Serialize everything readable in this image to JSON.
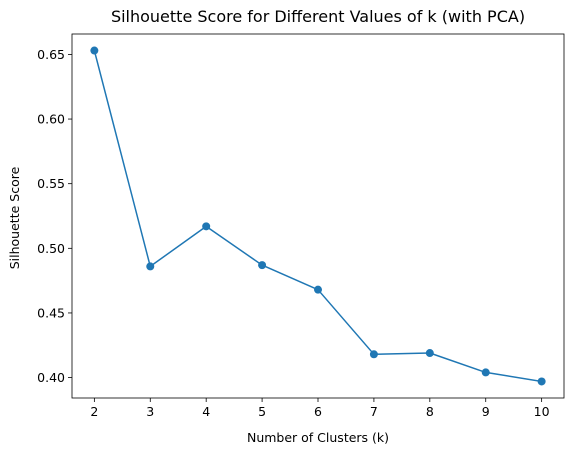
{
  "chart_data": {
    "type": "line",
    "title": "Silhouette Score for Different Values of k (with PCA)",
    "xlabel": "Number of Clusters (k)",
    "ylabel": "Silhouette Score",
    "x": [
      2,
      3,
      4,
      5,
      6,
      7,
      8,
      9,
      10
    ],
    "series": [
      {
        "values": [
          0.653,
          0.486,
          0.517,
          0.487,
          0.468,
          0.418,
          0.419,
          0.404,
          0.397
        ],
        "color": "#1f77b4",
        "marker": "circle"
      }
    ],
    "xticks": [
      "2",
      "3",
      "4",
      "5",
      "6",
      "7",
      "8",
      "9",
      "10"
    ],
    "yticks": [
      "0.40",
      "0.45",
      "0.50",
      "0.55",
      "0.60",
      "0.65"
    ],
    "xlim": [
      1.6,
      10.4
    ],
    "ylim": [
      0.3842,
      0.6658
    ],
    "grid": false,
    "legend": "none"
  }
}
